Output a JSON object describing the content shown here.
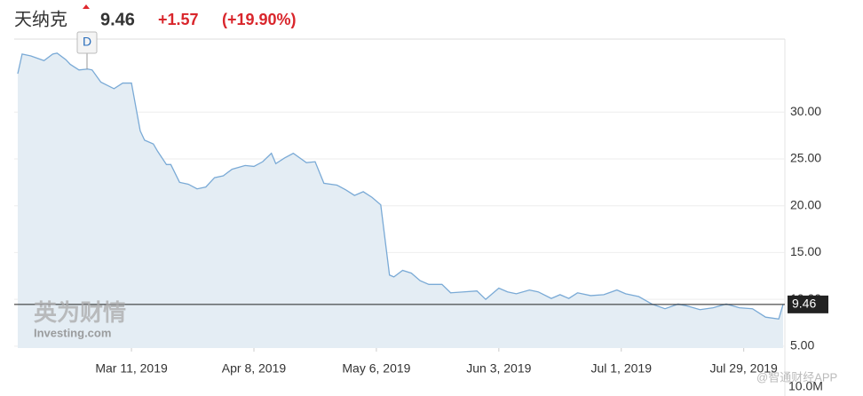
{
  "chart_data": {
    "type": "line",
    "title": "天纳克",
    "price": 9.46,
    "change": "+1.57",
    "change_percent": "(+19.90%)",
    "marker_label": "D",
    "x": [
      "2019-02-13",
      "2019-02-14",
      "2019-02-16",
      "2019-02-19",
      "2019-02-21",
      "2019-02-22",
      "2019-02-24",
      "2019-02-25",
      "2019-02-27",
      "2019-03-01",
      "2019-03-02",
      "2019-03-04",
      "2019-03-07",
      "2019-03-09",
      "2019-03-11",
      "2019-03-13",
      "2019-03-14",
      "2019-03-16",
      "2019-03-17",
      "2019-03-19",
      "2019-03-20",
      "2019-03-22",
      "2019-03-24",
      "2019-03-26",
      "2019-03-28",
      "2019-03-30",
      "2019-04-01",
      "2019-04-03",
      "2019-04-06",
      "2019-04-08",
      "2019-04-10",
      "2019-04-12",
      "2019-04-13",
      "2019-04-15",
      "2019-04-17",
      "2019-04-20",
      "2019-04-22",
      "2019-04-24",
      "2019-04-27",
      "2019-04-29",
      "2019-05-01",
      "2019-05-03",
      "2019-05-05",
      "2019-05-07",
      "2019-05-09",
      "2019-05-10",
      "2019-05-12",
      "2019-05-14",
      "2019-05-16",
      "2019-05-18",
      "2019-05-21",
      "2019-05-23",
      "2019-05-26",
      "2019-05-29",
      "2019-05-31",
      "2019-06-03",
      "2019-06-05",
      "2019-06-07",
      "2019-06-10",
      "2019-06-12",
      "2019-06-15",
      "2019-06-17",
      "2019-06-19",
      "2019-06-21",
      "2019-06-24",
      "2019-06-27",
      "2019-06-30",
      "2019-07-02",
      "2019-07-05",
      "2019-07-08",
      "2019-07-11",
      "2019-07-14",
      "2019-07-16",
      "2019-07-19",
      "2019-07-22",
      "2019-07-25",
      "2019-07-28",
      "2019-07-31",
      "2019-08-03",
      "2019-08-06",
      "2019-08-07"
    ],
    "values": [
      34.1,
      36.2,
      36.0,
      35.5,
      36.2,
      36.3,
      35.6,
      35.1,
      34.5,
      34.6,
      34.5,
      33.2,
      32.5,
      33.1,
      33.1,
      28.0,
      27.0,
      26.6,
      25.8,
      24.4,
      24.4,
      22.5,
      22.3,
      21.8,
      22.0,
      23.0,
      23.2,
      23.9,
      24.3,
      24.2,
      24.7,
      25.6,
      24.5,
      25.1,
      25.6,
      24.6,
      24.7,
      22.4,
      22.2,
      21.7,
      21.1,
      21.5,
      20.9,
      20.1,
      12.6,
      12.4,
      13.1,
      12.8,
      12.0,
      11.6,
      11.6,
      10.7,
      10.8,
      10.9,
      10.0,
      11.2,
      10.8,
      10.6,
      11.0,
      10.8,
      10.1,
      10.5,
      10.1,
      10.7,
      10.4,
      10.5,
      11.0,
      10.6,
      10.3,
      9.5,
      9.0,
      9.5,
      9.3,
      8.9,
      9.1,
      9.5,
      9.1,
      9.0,
      8.1,
      7.9,
      9.46
    ],
    "color": "#7aaad6",
    "fill": "#e4edf4",
    "xlim": [
      "2019-02-13",
      "2019-08-07"
    ],
    "xticks": [
      {
        "value": "2019-03-11",
        "label": "Mar 11, 2019"
      },
      {
        "value": "2019-04-08",
        "label": "Apr 8, 2019"
      },
      {
        "value": "2019-05-06",
        "label": "May 6, 2019"
      },
      {
        "value": "2019-06-03",
        "label": "Jun 3, 2019"
      },
      {
        "value": "2019-07-01",
        "label": "Jul 1, 2019"
      },
      {
        "value": "2019-07-29",
        "label": "Jul 29, 2019"
      }
    ],
    "ylim": [
      4.8,
      37.8
    ],
    "yticks": [
      {
        "value": 5,
        "label": "5.00"
      },
      {
        "value": 10,
        "label": "10.00"
      },
      {
        "value": 15,
        "label": "15.00"
      },
      {
        "value": 20,
        "label": "20.00"
      },
      {
        "value": 25,
        "label": "25.00"
      },
      {
        "value": 30,
        "label": "30.00"
      }
    ],
    "volume_tick_label": "10.0M",
    "watermark": [
      "英为财情",
      "Investing.com"
    ],
    "source": "@智通财经APP"
  }
}
